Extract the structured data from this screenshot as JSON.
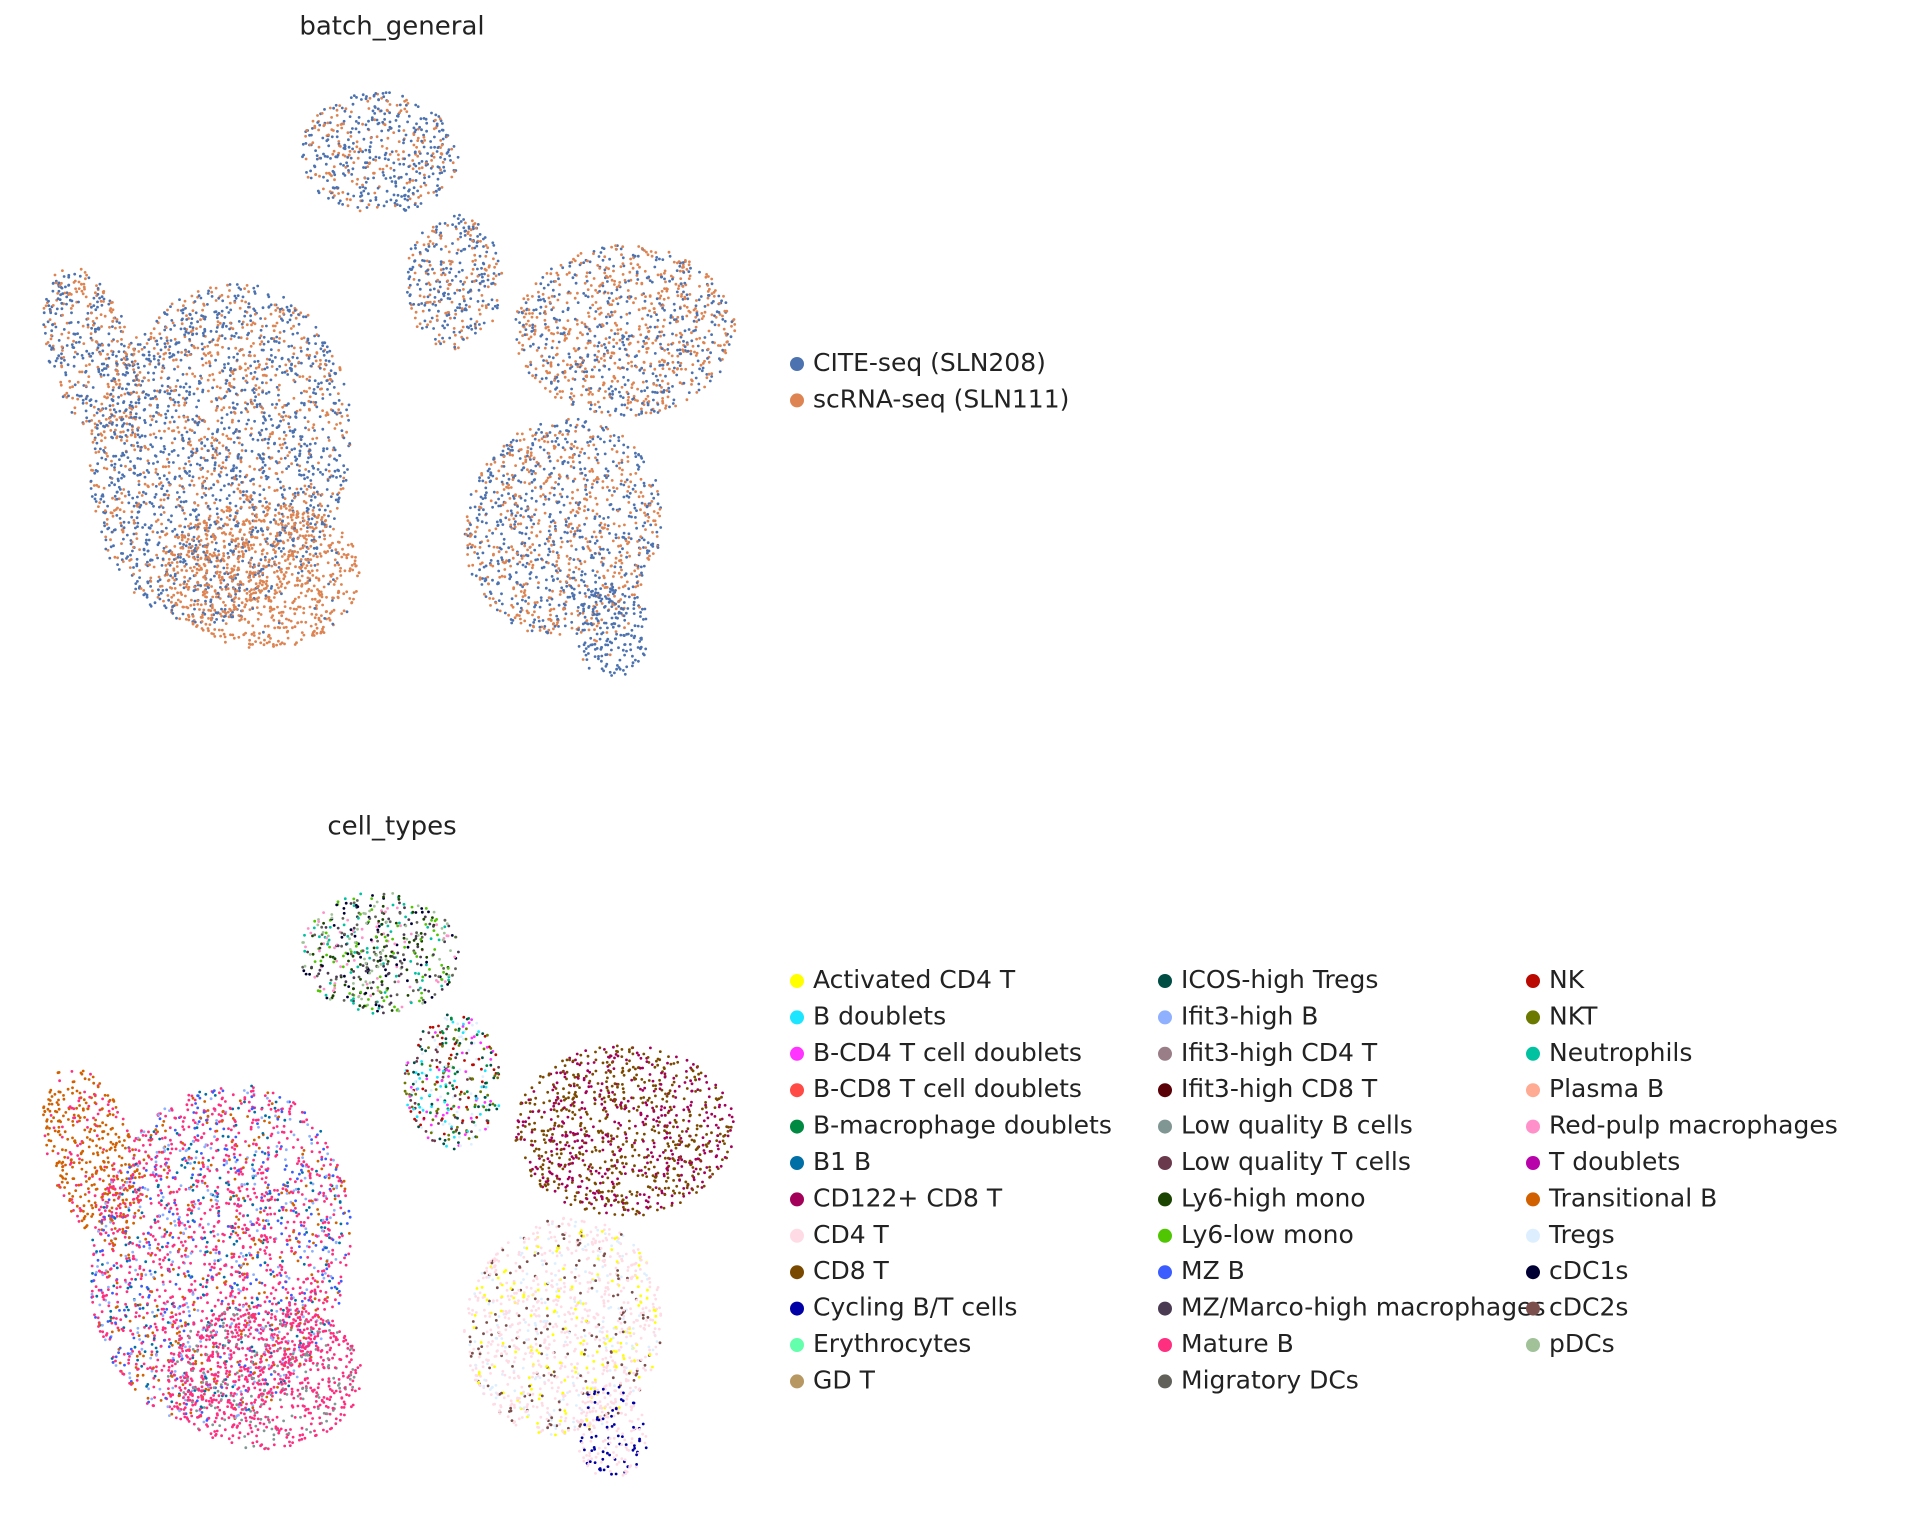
{
  "chart_data": [
    {
      "type": "scatter",
      "title": "batch_general",
      "series": [
        {
          "name": "CITE-seq (SLN208)",
          "color": "#4c72b0"
        },
        {
          "name": "scRNA-seq (SLN111)",
          "color": "#dd8452"
        }
      ]
    },
    {
      "type": "scatter",
      "title": "cell_types",
      "series": [
        {
          "name": "Activated CD4 T",
          "color": "#FFFF00"
        },
        {
          "name": "B doublets",
          "color": "#1CE6FF"
        },
        {
          "name": "B-CD4 T cell doublets",
          "color": "#FF34FF"
        },
        {
          "name": "B-CD8 T cell doublets",
          "color": "#FF4A46"
        },
        {
          "name": "B-macrophage doublets",
          "color": "#008941"
        },
        {
          "name": "B1 B",
          "color": "#006FA6"
        },
        {
          "name": "CD122+ CD8 T",
          "color": "#A30059"
        },
        {
          "name": "CD4 T",
          "color": "#FFDBE5"
        },
        {
          "name": "CD8 T",
          "color": "#7A4900"
        },
        {
          "name": "Cycling B/T cells",
          "color": "#0000A6"
        },
        {
          "name": "Erythrocytes",
          "color": "#63FFAC"
        },
        {
          "name": "GD T",
          "color": "#B79762"
        },
        {
          "name": "ICOS-high Tregs",
          "color": "#004D43"
        },
        {
          "name": "Ifit3-high B",
          "color": "#8FB0FF"
        },
        {
          "name": "Ifit3-high CD4 T",
          "color": "#997D87"
        },
        {
          "name": "Ifit3-high CD8 T",
          "color": "#5A0007"
        },
        {
          "name": "Low quality B cells",
          "color": "#809693"
        },
        {
          "name": "Low quality T cells",
          "color": "#6A3A4C"
        },
        {
          "name": "Ly6-high mono",
          "color": "#1B4400"
        },
        {
          "name": "Ly6-low mono",
          "color": "#4FC601"
        },
        {
          "name": "MZ B",
          "color": "#3B5DFF"
        },
        {
          "name": "MZ/Marco-high macrophages",
          "color": "#4A3B53"
        },
        {
          "name": "Mature B",
          "color": "#FF2F80"
        },
        {
          "name": "Migratory DCs",
          "color": "#61615A"
        },
        {
          "name": "NK",
          "color": "#BA0900"
        },
        {
          "name": "NKT",
          "color": "#6B7900"
        },
        {
          "name": "Neutrophils",
          "color": "#00C2A0"
        },
        {
          "name": "Plasma B",
          "color": "#FFAA92"
        },
        {
          "name": "Red-pulp macrophages",
          "color": "#FF90C9"
        },
        {
          "name": "T doublets",
          "color": "#B903AA"
        },
        {
          "name": "Transitional B",
          "color": "#D16100"
        },
        {
          "name": "Tregs",
          "color": "#DDEFFF"
        },
        {
          "name": "cDC1s",
          "color": "#000035"
        },
        {
          "name": "cDC2s",
          "color": "#7B4F4B"
        },
        {
          "name": "pDCs",
          "color": "#A1C299"
        }
      ]
    }
  ]
}
